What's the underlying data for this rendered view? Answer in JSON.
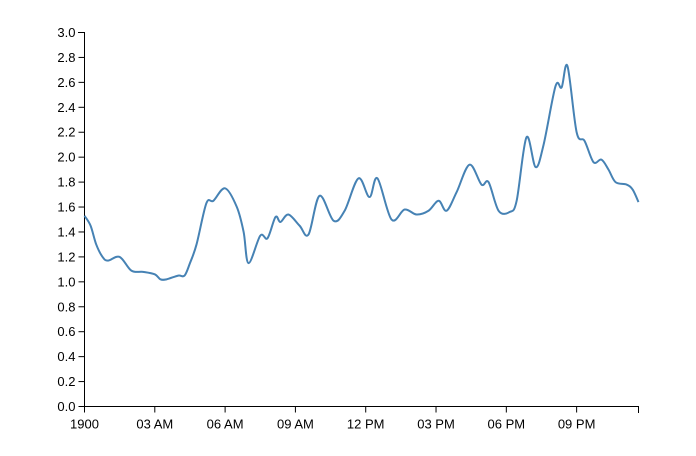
{
  "chart_data": {
    "type": "line",
    "x": [
      0,
      0.26,
      0.5,
      0.77,
      1.0,
      1.5,
      2.0,
      2.5,
      3.0,
      3.24,
      3.5,
      4.0,
      4.27,
      4.5,
      4.78,
      5.2,
      5.5,
      6.0,
      6.5,
      6.79,
      7.0,
      7.5,
      7.81,
      8.15,
      8.36,
      8.7,
      9.18,
      9.56,
      10.03,
      10.63,
      11.1,
      11.69,
      12.16,
      12.5,
      13.1,
      13.66,
      14.17,
      14.68,
      15.11,
      15.45,
      15.88,
      16.43,
      16.94,
      17.24,
      17.67,
      18.14,
      18.44,
      18.86,
      19.25,
      19.59,
      20.1,
      20.36,
      20.61,
      21.0,
      21.34,
      21.72,
      22.06,
      22.36,
      22.66,
      23.13,
      23.39,
      23.64
    ],
    "series": [
      {
        "color": "#4682b4",
        "values": [
          1.53,
          1.45,
          1.3,
          1.2,
          1.17,
          1.2,
          1.09,
          1.08,
          1.06,
          1.02,
          1.02,
          1.05,
          1.05,
          1.15,
          1.3,
          1.63,
          1.65,
          1.75,
          1.6,
          1.4,
          1.15,
          1.37,
          1.35,
          1.52,
          1.48,
          1.54,
          1.45,
          1.38,
          1.69,
          1.49,
          1.57,
          1.83,
          1.68,
          1.83,
          1.5,
          1.58,
          1.54,
          1.57,
          1.65,
          1.57,
          1.72,
          1.94,
          1.78,
          1.8,
          1.57,
          1.56,
          1.65,
          2.16,
          1.92,
          2.1,
          2.57,
          2.56,
          2.73,
          2.2,
          2.13,
          1.96,
          1.98,
          1.9,
          1.8,
          1.78,
          1.74,
          1.64
        ]
      }
    ],
    "xlim": [
      0,
      23.64
    ],
    "xticks": [
      {
        "value": 0,
        "label": "1900"
      },
      {
        "value": 3,
        "label": "03 AM"
      },
      {
        "value": 6,
        "label": "06 AM"
      },
      {
        "value": 9,
        "label": "09 AM"
      },
      {
        "value": 12,
        "label": "12 PM"
      },
      {
        "value": 15,
        "label": "03 PM"
      },
      {
        "value": 18,
        "label": "06 PM"
      },
      {
        "value": 21,
        "label": "09 PM"
      }
    ],
    "ylim": [
      0,
      3
    ],
    "yticks": [
      {
        "value": 0,
        "label": "0.0"
      },
      {
        "value": 0.2,
        "label": "0.2"
      },
      {
        "value": 0.4,
        "label": "0.4"
      },
      {
        "value": 0.6,
        "label": "0.6"
      },
      {
        "value": 0.8,
        "label": "0.8"
      },
      {
        "value": 1,
        "label": "1.0"
      },
      {
        "value": 1.2,
        "label": "1.2"
      },
      {
        "value": 1.4,
        "label": "1.4"
      },
      {
        "value": 1.6,
        "label": "1.6"
      },
      {
        "value": 1.8,
        "label": "1.8"
      },
      {
        "value": 2,
        "label": "2.0"
      },
      {
        "value": 2.2,
        "label": "2.2"
      },
      {
        "value": 2.4,
        "label": "2.4"
      },
      {
        "value": 2.6,
        "label": "2.6"
      },
      {
        "value": 2.8,
        "label": "2.8"
      },
      {
        "value": 3,
        "label": "3.0"
      }
    ]
  }
}
